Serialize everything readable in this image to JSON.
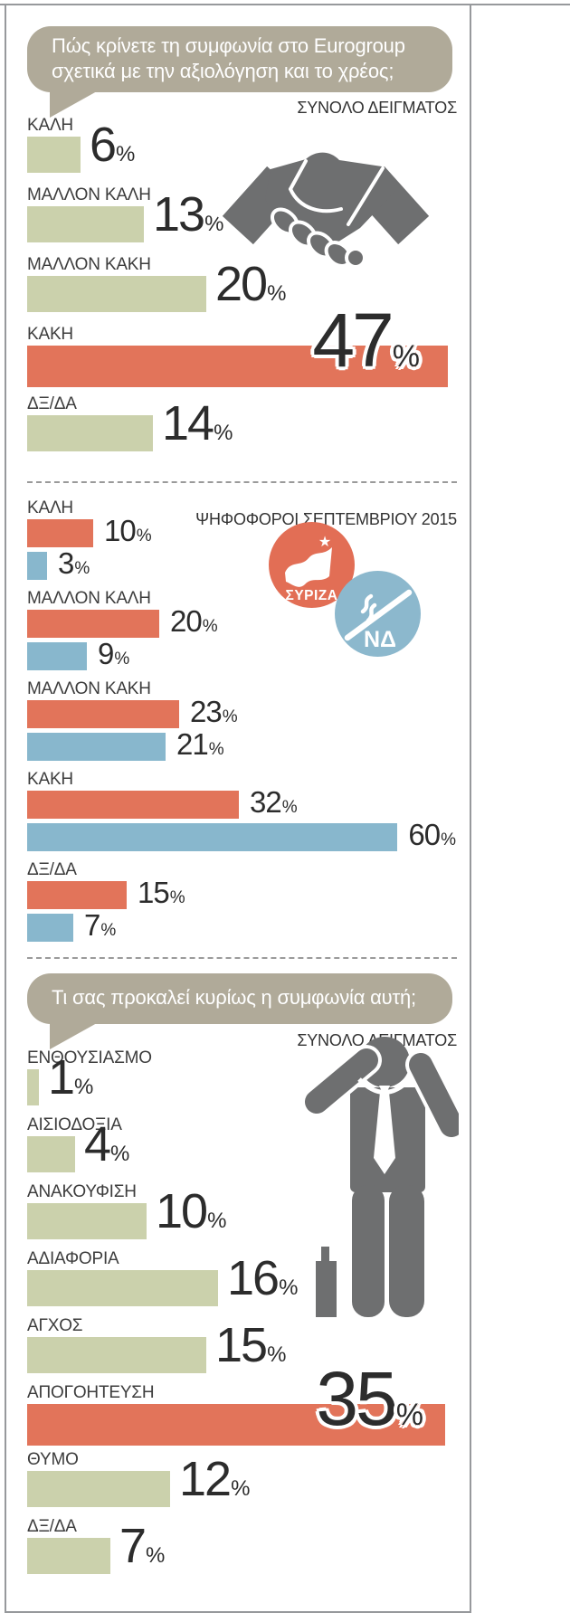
{
  "infographic": {
    "section1": {
      "question": "Πώς κρίνετε τη συμφωνία στο Eurogroup σχετικά με την αξιολόγηση και το χρέος;",
      "sample_label": "ΣΥΝΟΛΟ ΔΕΙΓΜΑΤΟΣ"
    },
    "section2": {
      "group_label": "ΨΗΦΟΦΟΡΟΙ ΣΕΠΤΕΜΒΡΙΟΥ 2015"
    },
    "section3": {
      "question": "Τι σας προκαλεί κυρίως η συμφωνία αυτή;",
      "sample_label": "ΣΥΝΟΛΟ ΔΕΙΓΜΑΤΟΣ"
    }
  },
  "logos": {
    "syriza": "ΣΥΡΙΖΑ",
    "nd": "ΝΔ"
  },
  "colors": {
    "green_bar": "#cbd1ac",
    "orange_bar": "#e2745a",
    "blue_bar": "#88b7cd",
    "bubble_beige": "#b0aa99",
    "icon_gray": "#6e6f70",
    "syriza_orange": "#e26e55",
    "nd_blue": "#8cb8cd",
    "text_dark": "#2c2c2c",
    "frame_border": "#97999c"
  },
  "chart_data": [
    {
      "type": "bar",
      "orientation": "horizontal",
      "title": "Πώς κρίνετε τη συμφωνία στο Eurogroup σχετικά με την αξιολόγηση και το χρέος;",
      "group": "ΣΥΝΟΛΟ ΔΕΙΓΜΑΤΟΣ",
      "unit": "%",
      "categories": [
        "ΚΑΛΗ",
        "ΜΑΛΛΟΝ ΚΑΛΗ",
        "ΜΑΛΛΟΝ ΚΑΚΗ",
        "ΚΑΚΗ",
        "ΔΞ/ΔΑ"
      ],
      "values": [
        6,
        13,
        20,
        47,
        14
      ],
      "highlight_index": 3,
      "bar_color": "#cbd1ac",
      "highlight_color": "#e2745a",
      "xlim": [
        0,
        47
      ],
      "grid": false,
      "legend": "none"
    },
    {
      "type": "bar",
      "orientation": "horizontal",
      "title": "Πώς κρίνετε τη συμφωνία στο Eurogroup σχετικά με την αξιολόγηση και το χρέος;",
      "group": "ΨΗΦΟΦΟΡΟΙ ΣΕΠΤΕΜΒΡΙΟΥ 2015",
      "unit": "%",
      "categories": [
        "ΚΑΛΗ",
        "ΜΑΛΛΟΝ ΚΑΛΗ",
        "ΜΑΛΛΟΝ ΚΑΚΗ",
        "ΚΑΚΗ",
        "ΔΞ/ΔΑ"
      ],
      "series": [
        {
          "name": "ΣΥΡΙΖΑ",
          "color": "#e2745a",
          "values": [
            10,
            20,
            23,
            32,
            15
          ]
        },
        {
          "name": "ΝΔ",
          "color": "#88b7cd",
          "values": [
            3,
            9,
            21,
            60,
            7
          ]
        }
      ],
      "xlim": [
        0,
        60
      ],
      "grid": false,
      "legend": "party badges"
    },
    {
      "type": "bar",
      "orientation": "horizontal",
      "title": "Τι σας προκαλεί κυρίως η συμφωνία αυτή;",
      "group": "ΣΥΝΟΛΟ ΔΕΙΓΜΑΤΟΣ",
      "unit": "%",
      "categories": [
        "ΕΝΘΟΥΣΙΑΣΜΟ",
        "ΑΙΣΙΟΔΟΞΙΑ",
        "ΑΝΑΚΟΥΦΙΣΗ",
        "ΑΔΙΑΦΟΡΙΑ",
        "ΑΓΧΟΣ",
        "ΑΠΟΓΟΗΤΕΥΣΗ",
        "ΘΥΜΟ",
        "ΔΞ/ΔΑ"
      ],
      "values": [
        1,
        4,
        10,
        16,
        15,
        35,
        12,
        7
      ],
      "highlight_index": 5,
      "bar_color": "#cbd1ac",
      "highlight_color": "#e2745a",
      "xlim": [
        0,
        35
      ],
      "grid": false,
      "legend": "none"
    }
  ]
}
